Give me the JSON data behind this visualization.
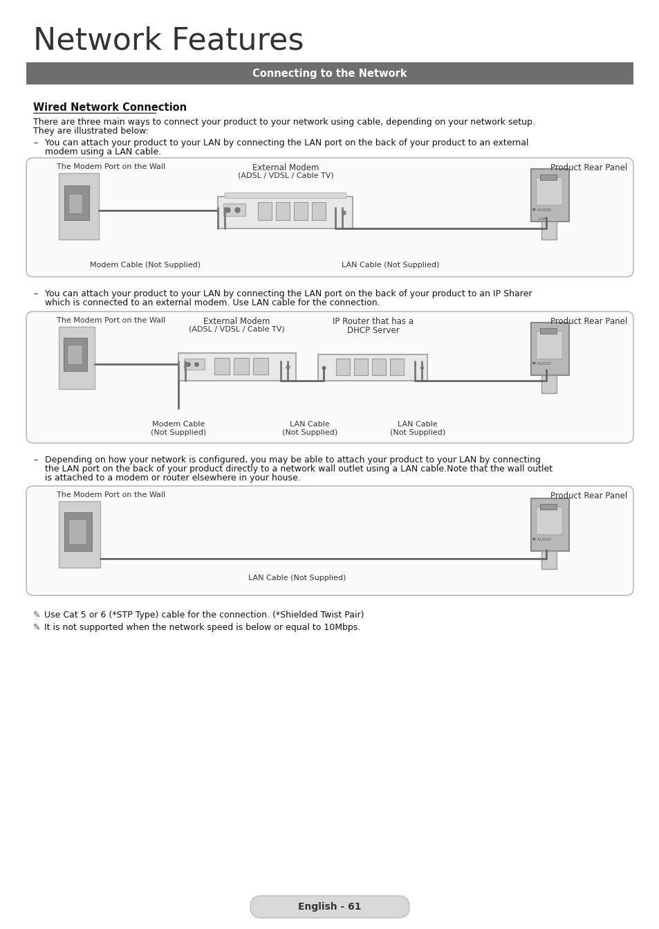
{
  "title": "Network Features",
  "subtitle": "Connecting to the Network",
  "subtitle_bg": "#6e6e6e",
  "subtitle_color": "#ffffff",
  "section1_title": "Wired Network Connection",
  "body_text1a": "There are three main ways to connect your product to your network using cable, depending on your network setup.",
  "body_text1b": "They are illustrated below:",
  "bullet1": "You can attach your product to your LAN by connecting the LAN port on the back of your product to an external",
  "bullet1b": "modem using a LAN cable.",
  "bullet2a": "You can attach your product to your LAN by connecting the LAN port on the back of your product to an IP Sharer",
  "bullet2b": "which is connected to an external modem. Use LAN cable for the connection.",
  "bullet3a": "Depending on how your network is configured, you may be able to attach your product to your LAN by connecting",
  "bullet3b": "the LAN port on the back of your product directly to a network wall outlet using a LAN cable.Note that the wall outlet",
  "bullet3c": "is attached to a modem or router elsewhere in your house.",
  "note1": "Use Cat 5 or 6 (*STP Type) cable for the connection. (*Shielded Twist Pair)",
  "note2": "It is not supported when the network speed is below or equal to 10Mbps.",
  "page_label": "English - 61",
  "bg_color": "#ffffff",
  "diagram1": {
    "label_left": "The Modem Port on the Wall",
    "label_center_top": "External Modem",
    "label_center_sub": "(ADSL / VDSL / Cable TV)",
    "label_right": "Product Rear Panel",
    "label_cable_left": "Modem Cable (Not Supplied)",
    "label_cable_right": "LAN Cable (Not Supplied)"
  },
  "diagram2": {
    "label_left": "The Modem Port on the Wall",
    "label_center_top": "External Modem",
    "label_center_sub": "(ADSL / VDSL / Cable TV)",
    "label_mid_top": "IP Router that has a",
    "label_mid_sub": "DHCP Server",
    "label_right": "Product Rear Panel",
    "label_cable_left": "Modem Cable",
    "label_cable_left2": "(Not Supplied)",
    "label_cable_mid": "LAN Cable",
    "label_cable_mid2": "(Not Supplied)",
    "label_cable_right": "LAN Cable",
    "label_cable_right2": "(Not Supplied)"
  },
  "diagram3": {
    "label_left": "The Modem Port on the Wall",
    "label_right": "Product Rear Panel",
    "label_cable": "LAN Cable (Not Supplied)"
  }
}
